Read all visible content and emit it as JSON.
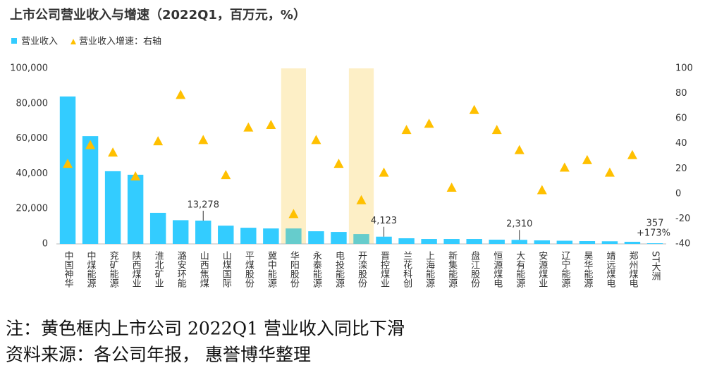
{
  "chart_data": {
    "type": "bar",
    "title": "上市公司营业收入与增速（2022Q1，百万元，%）",
    "categories": [
      "中国神华",
      "中煤能源",
      "兖矿能源",
      "陕西煤业",
      "淮北矿业",
      "潞安环能",
      "山西焦煤",
      "山煤国际",
      "平煤股份",
      "冀中能源",
      "华阳股份",
      "永泰能源",
      "电投能源",
      "开滦股份",
      "晋控煤业",
      "兰花科创",
      "上海能源",
      "新集能源",
      "盘江股份",
      "恒源煤电",
      "大有能源",
      "安源煤业",
      "辽宁能源",
      "昊华能源",
      "靖远煤电",
      "郑州煤电",
      "ST大洲"
    ],
    "series": [
      {
        "name": "营业收入",
        "type": "bar",
        "color": "#33ccff",
        "highlight_color": "#66cccc",
        "values": [
          84000,
          61400,
          41400,
          39400,
          17700,
          13500,
          13278,
          10400,
          9200,
          8800,
          8800,
          7200,
          6800,
          5600,
          4123,
          3200,
          2800,
          2800,
          2800,
          2400,
          2310,
          2000,
          1800,
          1600,
          1500,
          1200,
          357
        ],
        "value_labels": [
          null,
          null,
          null,
          null,
          null,
          null,
          "13,278",
          null,
          null,
          null,
          null,
          null,
          null,
          null,
          "4,123",
          null,
          null,
          null,
          null,
          null,
          "2,310",
          null,
          null,
          null,
          null,
          null,
          "357"
        ]
      },
      {
        "name": "营业收入增速：右轴",
        "type": "scatter",
        "axis": "y2",
        "color": "#ffc000",
        "values": [
          24,
          39,
          33,
          14,
          42,
          79,
          43,
          15,
          53,
          55,
          -16,
          43,
          24,
          -5,
          17,
          51,
          56,
          5,
          67,
          51,
          35,
          3,
          21,
          27,
          17,
          31,
          173
        ],
        "value_labels": [
          null,
          null,
          null,
          null,
          null,
          null,
          null,
          null,
          null,
          null,
          null,
          null,
          null,
          null,
          null,
          null,
          null,
          null,
          null,
          null,
          null,
          null,
          null,
          null,
          null,
          null,
          "+173%"
        ]
      }
    ],
    "highlight": [
      10,
      13
    ],
    "highlight_color": "#fdefc6",
    "ylim": [
      0,
      100000
    ],
    "yticks": [
      0,
      {
        "value": 20000,
        "label": "20,000"
      },
      {
        "value": 40000,
        "label": "40,000"
      },
      {
        "value": 60000,
        "label": "60,000"
      },
      {
        "value": 80000,
        "label": "80,000"
      },
      {
        "value": 100000,
        "label": "100,000"
      }
    ],
    "y2lim": [
      -40,
      100
    ],
    "y2ticks": [
      -40,
      -20,
      0,
      20,
      40,
      60,
      80,
      100
    ],
    "legend": "top-left",
    "notes": [
      "注：黄色框内上市公司 2022Q1 营业收入同比下滑",
      "资料来源：各公司年报， 惠誉博华整理"
    ]
  }
}
